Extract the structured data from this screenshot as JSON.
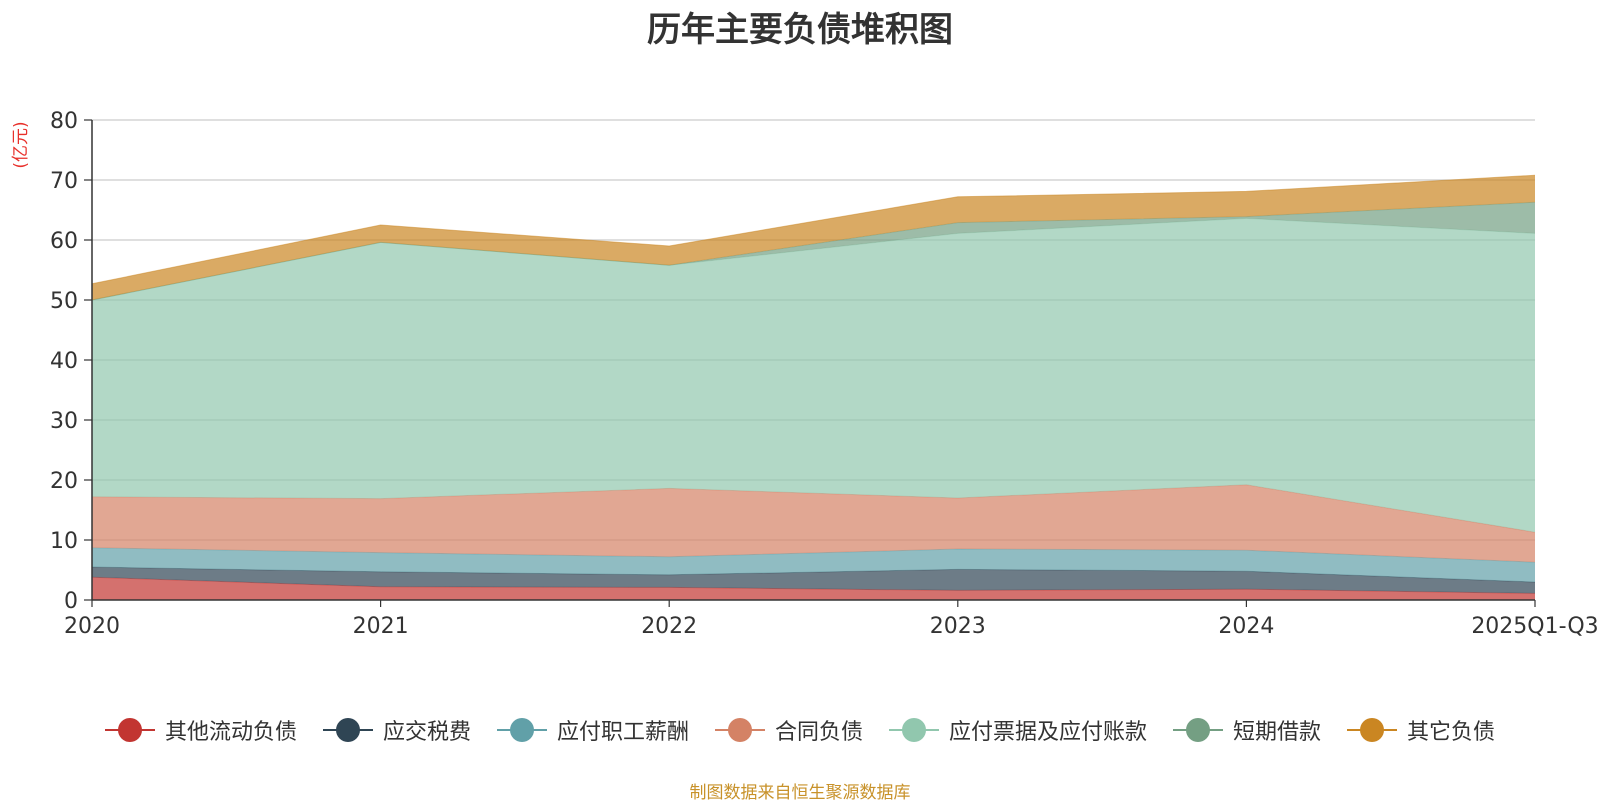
{
  "chart_data": {
    "type": "area",
    "stacked": true,
    "title": "历年主要负债堆积图",
    "ylabel": "(亿元)",
    "xlabel": "",
    "categories": [
      "2020",
      "2021",
      "2022",
      "2023",
      "2024",
      "2025Q1-Q3"
    ],
    "yticks": [
      0,
      10,
      20,
      30,
      40,
      50,
      60,
      70,
      80
    ],
    "ylim": [
      0,
      80
    ],
    "grid": true,
    "legend_position": "bottom",
    "series": [
      {
        "name": "其他流动负债",
        "color": "#c23531",
        "values": [
          3.8,
          2.2,
          2.1,
          1.6,
          1.8,
          1.1
        ]
      },
      {
        "name": "应交税费",
        "color": "#2f4554",
        "values": [
          1.7,
          2.5,
          2.1,
          3.5,
          3.0,
          1.9
        ]
      },
      {
        "name": "应付职工薪酬",
        "color": "#61a0a8",
        "values": [
          3.2,
          3.2,
          3.0,
          3.4,
          3.5,
          3.3
        ]
      },
      {
        "name": "合同负债",
        "color": "#d48265",
        "values": [
          8.5,
          9.0,
          11.4,
          8.5,
          10.9,
          5.0
        ]
      },
      {
        "name": "应付票据及应付账款",
        "color": "#91c7ae",
        "values": [
          32.8,
          42.7,
          37.2,
          44.1,
          44.4,
          49.8
        ]
      },
      {
        "name": "短期借款",
        "color": "#749f83",
        "values": [
          0.0,
          0.0,
          0.0,
          1.8,
          0.3,
          5.2
        ]
      },
      {
        "name": "其它负债",
        "color": "#ca8622",
        "values": [
          2.7,
          2.9,
          3.2,
          4.3,
          4.2,
          4.5
        ]
      }
    ]
  },
  "footer": {
    "source": "制图数据来自恒生聚源数据库"
  }
}
